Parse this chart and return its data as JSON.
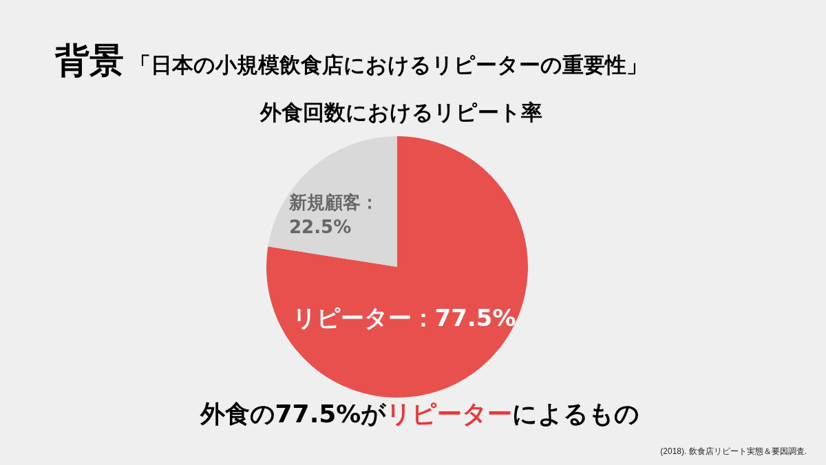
{
  "chart_data": {
    "type": "pie",
    "title": "背景",
    "subtitle": "「日本の小規模飲食店におけるリピーターの重要性」",
    "categories": [
      "リピーター",
      "新規顧客"
    ],
    "values": [
      77.5,
      22.5
    ],
    "colors": [
      "#e8504e",
      "#d9d9d9"
    ],
    "value_labels": [
      "：77.5%",
      "：22.5%"
    ],
    "legend": false,
    "annotations": [
      "外食回数におけるリピート率",
      "外食の77.5%が",
      "リピーター",
      "によるもの",
      "(2018). 飲食店リピート実態＆要因調査."
    ]
  }
}
